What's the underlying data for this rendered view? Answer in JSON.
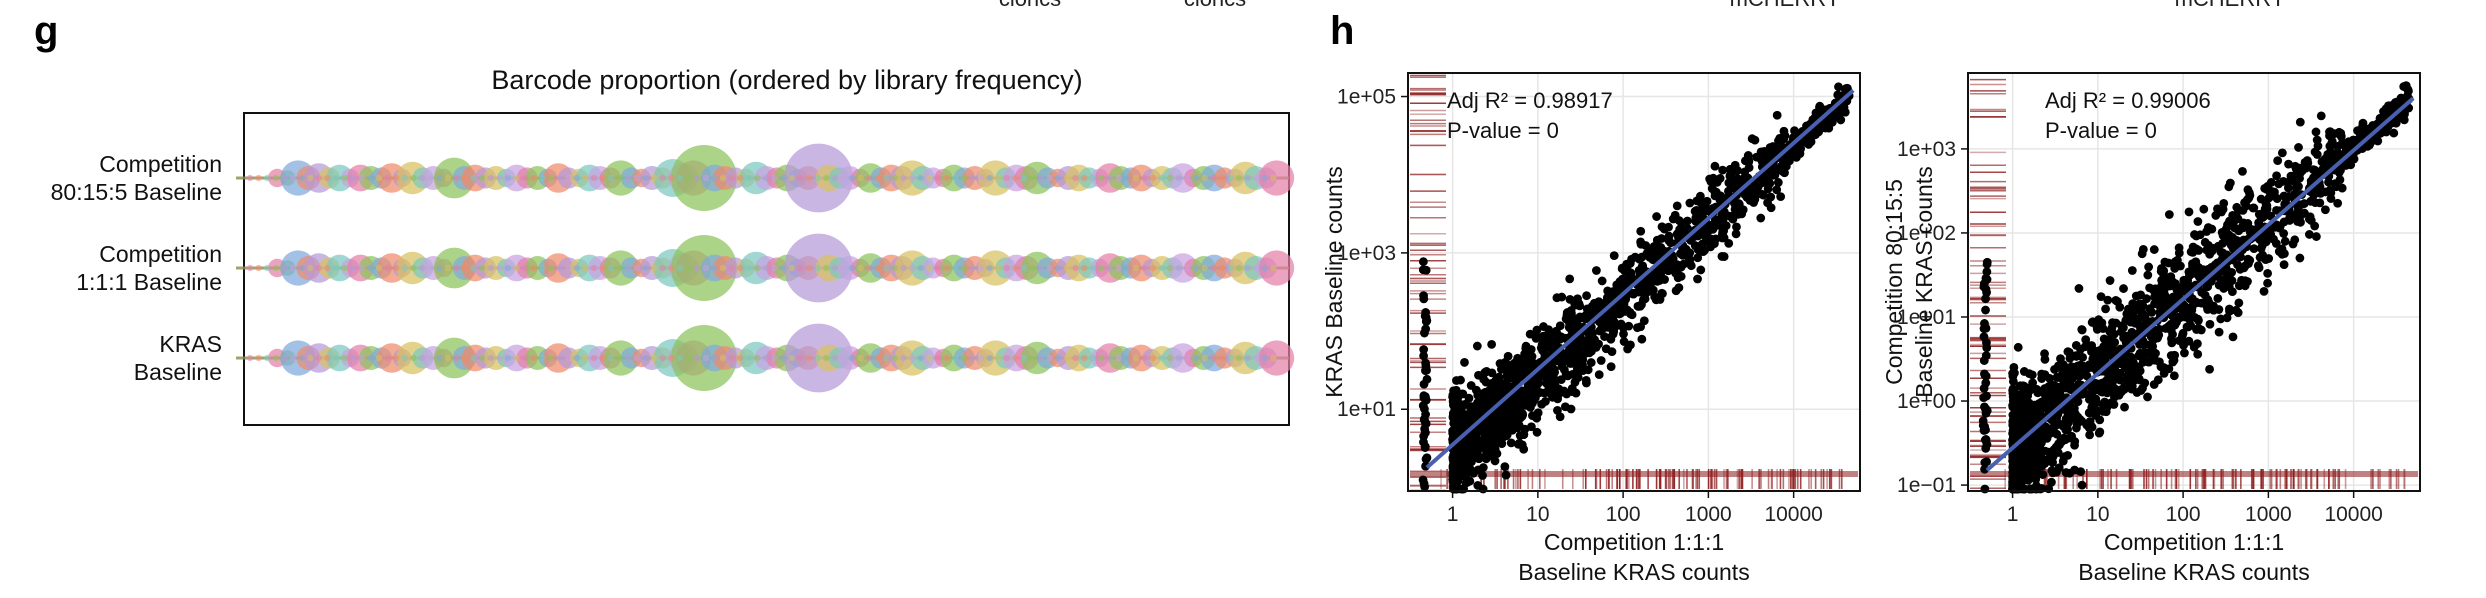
{
  "panel_labels": {
    "g": "g",
    "h": "h"
  },
  "top_fragments": [
    "cloncs",
    "cloncs",
    "mCHERRY",
    "mCHERRY"
  ],
  "colors": {
    "palette": [
      "#e57fa8",
      "#8cc45a",
      "#7fa9dd",
      "#f08a6a",
      "#b59ad8",
      "#d8c060",
      "#7cc8c0",
      "#c7a2e0"
    ],
    "line": "#1a1a1a",
    "fit_line": "#4860b0",
    "points": "#000000",
    "rug": "#8b1a1a",
    "grid": "#e6e6e6"
  },
  "chart_data": [
    {
      "type": "scatter",
      "title": "Barcode proportion (ordered by library frequency)",
      "rows": [
        {
          "label_line1": "Competition",
          "label_line2": "80:15:5 Baseline"
        },
        {
          "label_line1": "Competition",
          "label_line2": "1:1:1 Baseline"
        },
        {
          "label_line1": "KRAS",
          "label_line2": "Baseline"
        }
      ],
      "x": [
        0.03,
        0.04,
        0.05,
        0.06,
        0.07,
        0.08,
        0.09,
        0.1,
        0.11,
        0.12,
        0.13,
        0.14,
        0.15,
        0.16,
        0.17,
        0.18,
        0.19,
        0.2,
        0.21,
        0.22,
        0.23,
        0.24,
        0.25,
        0.26,
        0.27,
        0.28,
        0.29,
        0.3,
        0.31,
        0.32,
        0.33,
        0.34,
        0.35,
        0.36,
        0.37,
        0.38,
        0.39,
        0.4,
        0.41,
        0.42,
        0.43,
        0.44,
        0.45,
        0.46,
        0.47,
        0.48,
        0.49,
        0.5,
        0.51,
        0.52,
        0.53,
        0.54,
        0.55,
        0.56,
        0.57,
        0.58,
        0.59,
        0.6,
        0.61,
        0.62,
        0.63,
        0.64,
        0.65,
        0.66,
        0.67,
        0.68,
        0.69,
        0.7,
        0.71,
        0.72,
        0.73,
        0.74,
        0.75,
        0.76,
        0.77,
        0.78,
        0.79,
        0.8,
        0.81,
        0.82,
        0.83,
        0.84,
        0.85,
        0.86,
        0.87,
        0.88,
        0.89,
        0.9,
        0.91,
        0.92,
        0.93,
        0.94,
        0.95,
        0.96,
        0.97,
        0.98,
        0.99
      ],
      "sizes": [
        0.3,
        0.2,
        0.9,
        0.5,
        0.7,
        0.4,
        0.6,
        0.3,
        0.6,
        0.5,
        0.4,
        0.7,
        0.3,
        0.8,
        0.4,
        0.5,
        0.3,
        1.1,
        0.5,
        0.6,
        0.4,
        0.5,
        0.3,
        0.6,
        0.4,
        0.5,
        0.3,
        0.7,
        0.4,
        0.3,
        0.6,
        0.5,
        0.4,
        0.9,
        0.4,
        0.3,
        0.5,
        0.4,
        1.0,
        0.7,
        0.9,
        2.0,
        0.6,
        0.5,
        0.4,
        0.3,
        0.8,
        0.5,
        0.4,
        0.6,
        0.3,
        0.5,
        2.1,
        0.6,
        0.4,
        0.5,
        0.3,
        0.7,
        0.4,
        0.6,
        0.5,
        0.9,
        0.5,
        0.4,
        0.3,
        0.6,
        0.4,
        0.5,
        0.3,
        0.9,
        0.4,
        0.6,
        0.5,
        0.8,
        0.4,
        0.3,
        0.5,
        0.6,
        0.4,
        0.3,
        0.7,
        0.5,
        0.4,
        0.6,
        0.3,
        0.5,
        0.4,
        0.7,
        0.3,
        0.5,
        0.6,
        0.4,
        0.3,
        0.8,
        0.5,
        0.4,
        0.9
      ],
      "xlim": [
        0,
        1
      ],
      "grid": false
    },
    {
      "type": "scatter",
      "xscale": "log",
      "yscale": "log",
      "xlabel_line1": "Competition 1:1:1",
      "xlabel_line2": "Baseline KRAS counts",
      "ylabel_line1": "KRAS Baseline counts",
      "ylabel_line2": "",
      "xlim": [
        0.3,
        60000
      ],
      "ylim": [
        0.9,
        200000
      ],
      "x_ticks": [
        {
          "value": 1,
          "label": "1"
        },
        {
          "value": 10,
          "label": "10"
        },
        {
          "value": 100,
          "label": "100"
        },
        {
          "value": 1000,
          "label": "1000"
        },
        {
          "value": 10000,
          "label": "10000"
        }
      ],
      "y_ticks": [
        {
          "value": 10,
          "label": "1e+01"
        },
        {
          "value": 1000,
          "label": "1e+03"
        },
        {
          "value": 100000,
          "label": "1e+05"
        }
      ],
      "annotation_r2_prefix": "Adj R² = ",
      "annotation_r2_value": "0.98917",
      "annotation_p": "P-value = 0",
      "fit": {
        "x": [
          0.5,
          50000
        ],
        "y": [
          1.8,
          120000
        ]
      },
      "slope": 0.98,
      "intercept": 0.45,
      "sigma": 0.24,
      "seed": 11,
      "grid": true
    },
    {
      "type": "scatter",
      "xscale": "log",
      "yscale": "log",
      "xlabel_line1": "Competition 1:1:1",
      "xlabel_line2": "Baseline KRAS counts",
      "ylabel_line1": "Competition 80:15:5",
      "ylabel_line2": "Baseline KRAS counts",
      "xlim": [
        0.3,
        60000
      ],
      "ylim": [
        0.085,
        8000
      ],
      "x_ticks": [
        {
          "value": 1,
          "label": "1"
        },
        {
          "value": 10,
          "label": "10"
        },
        {
          "value": 100,
          "label": "100"
        },
        {
          "value": 1000,
          "label": "1000"
        },
        {
          "value": 10000,
          "label": "10000"
        }
      ],
      "y_ticks": [
        {
          "value": 0.1,
          "label": "1e−01"
        },
        {
          "value": 1,
          "label": "1e+00"
        },
        {
          "value": 10,
          "label": "1e+01"
        },
        {
          "value": 100,
          "label": "1e+02"
        },
        {
          "value": 1000,
          "label": "1e+03"
        }
      ],
      "annotation_r2_prefix": "Adj R² = ",
      "annotation_r2_value": "0.99006",
      "annotation_p": "P-value = 0",
      "fit": {
        "x": [
          0.5,
          50000
        ],
        "y": [
          0.15,
          4000
        ]
      },
      "slope": 0.9,
      "intercept": -0.6,
      "sigma": 0.3,
      "seed": 29,
      "grid": true
    }
  ]
}
